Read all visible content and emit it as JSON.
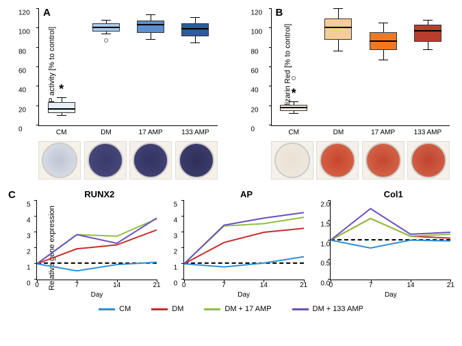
{
  "panel_A": {
    "label": "A",
    "ylabel": "AP activity [% to control]",
    "ylim": [
      0,
      120
    ],
    "ytick_step": 20,
    "categories": [
      "CM",
      "DM",
      "17 AMP",
      "133 AMP"
    ],
    "colors": [
      "#e6eef7",
      "#a8cbe9",
      "#5b8fcf",
      "#2e5a9e"
    ],
    "boxes": [
      {
        "q1": 13,
        "median": 16,
        "q3": 24,
        "lo": 10,
        "hi": 28,
        "sig": "*"
      },
      {
        "q1": 97,
        "median": 100,
        "q3": 105,
        "lo": 94,
        "hi": 108,
        "outlier": 87
      },
      {
        "q1": 95,
        "median": 103,
        "q3": 108,
        "lo": 88,
        "hi": 114
      },
      {
        "q1": 92,
        "median": 99,
        "q3": 105,
        "lo": 85,
        "hi": 111
      }
    ],
    "well_colors": [
      [
        "#bdc6d6",
        "#e0e2e6"
      ],
      [
        "#3a3a6e",
        "#4a4a7a"
      ],
      [
        "#343460",
        "#44447a"
      ],
      [
        "#2f2f58",
        "#404072"
      ]
    ]
  },
  "panel_B": {
    "label": "B",
    "ylabel": "Alizarin Red [% to control]",
    "ylim": [
      0,
      120
    ],
    "ytick_step": 20,
    "categories": [
      "CM",
      "DM",
      "17 AMP",
      "133 AMP"
    ],
    "colors": [
      "#fbeede",
      "#f7cc98",
      "#ea7a2a",
      "#b83e2b"
    ],
    "boxes": [
      {
        "q1": 15,
        "median": 18,
        "q3": 21,
        "lo": 12,
        "hi": 24,
        "sig": "*",
        "outlier": 48
      },
      {
        "q1": 88,
        "median": 100,
        "q3": 110,
        "lo": 76,
        "hi": 120
      },
      {
        "q1": 78,
        "median": 86,
        "q3": 96,
        "lo": 67,
        "hi": 105
      },
      {
        "q1": 86,
        "median": 97,
        "q3": 104,
        "lo": 78,
        "hi": 108
      }
    ],
    "well_colors": [
      [
        "#eae2d6",
        "#efe9df"
      ],
      [
        "#c9452e",
        "#d86a4a"
      ],
      [
        "#c54731",
        "#d76d4c"
      ],
      [
        "#c14430",
        "#d4684a"
      ]
    ]
  },
  "panel_C": {
    "label": "C",
    "ylabel": "Relative gene expression",
    "xlabel": "Day",
    "xticks": [
      0,
      7,
      14,
      21
    ],
    "charts": [
      {
        "title": "RUNX2",
        "ylim": [
          0,
          5
        ],
        "ytick_step": 1,
        "series": {
          "CM": [
            1.0,
            0.55,
            0.95,
            1.1
          ],
          "DM": [
            1.0,
            1.95,
            2.2,
            3.15
          ],
          "AMP17": [
            1.0,
            2.85,
            2.75,
            3.85
          ],
          "AMP133": [
            1.0,
            2.85,
            2.3,
            3.9
          ]
        }
      },
      {
        "title": "AP",
        "ylim": [
          0,
          5
        ],
        "ytick_step": 1,
        "series": {
          "CM": [
            1.0,
            0.8,
            1.05,
            1.45
          ],
          "DM": [
            1.0,
            2.35,
            3.0,
            3.25
          ],
          "AMP17": [
            1.0,
            3.4,
            3.55,
            3.95
          ],
          "AMP133": [
            1.0,
            3.45,
            3.9,
            4.25
          ]
        }
      },
      {
        "title": "Col1",
        "ylim": [
          0,
          2.0
        ],
        "ytick_step": 0.5,
        "series": {
          "CM": [
            1.0,
            0.8,
            1.0,
            0.98
          ],
          "DM": [
            1.0,
            1.55,
            1.1,
            1.05
          ],
          "AMP17": [
            1.0,
            1.55,
            1.1,
            1.15
          ],
          "AMP133": [
            1.0,
            1.8,
            1.15,
            1.2
          ]
        }
      }
    ]
  },
  "legend": [
    {
      "key": "CM",
      "label": "CM",
      "color": "#2d8fd6"
    },
    {
      "key": "DM",
      "label": "DM",
      "color": "#c92b2b"
    },
    {
      "key": "AMP17",
      "label": "DM + 17 AMP",
      "color": "#8fbf3f"
    },
    {
      "key": "AMP133",
      "label": "DM + 133 AMP",
      "color": "#6a4fbf"
    }
  ],
  "line_width": 2
}
